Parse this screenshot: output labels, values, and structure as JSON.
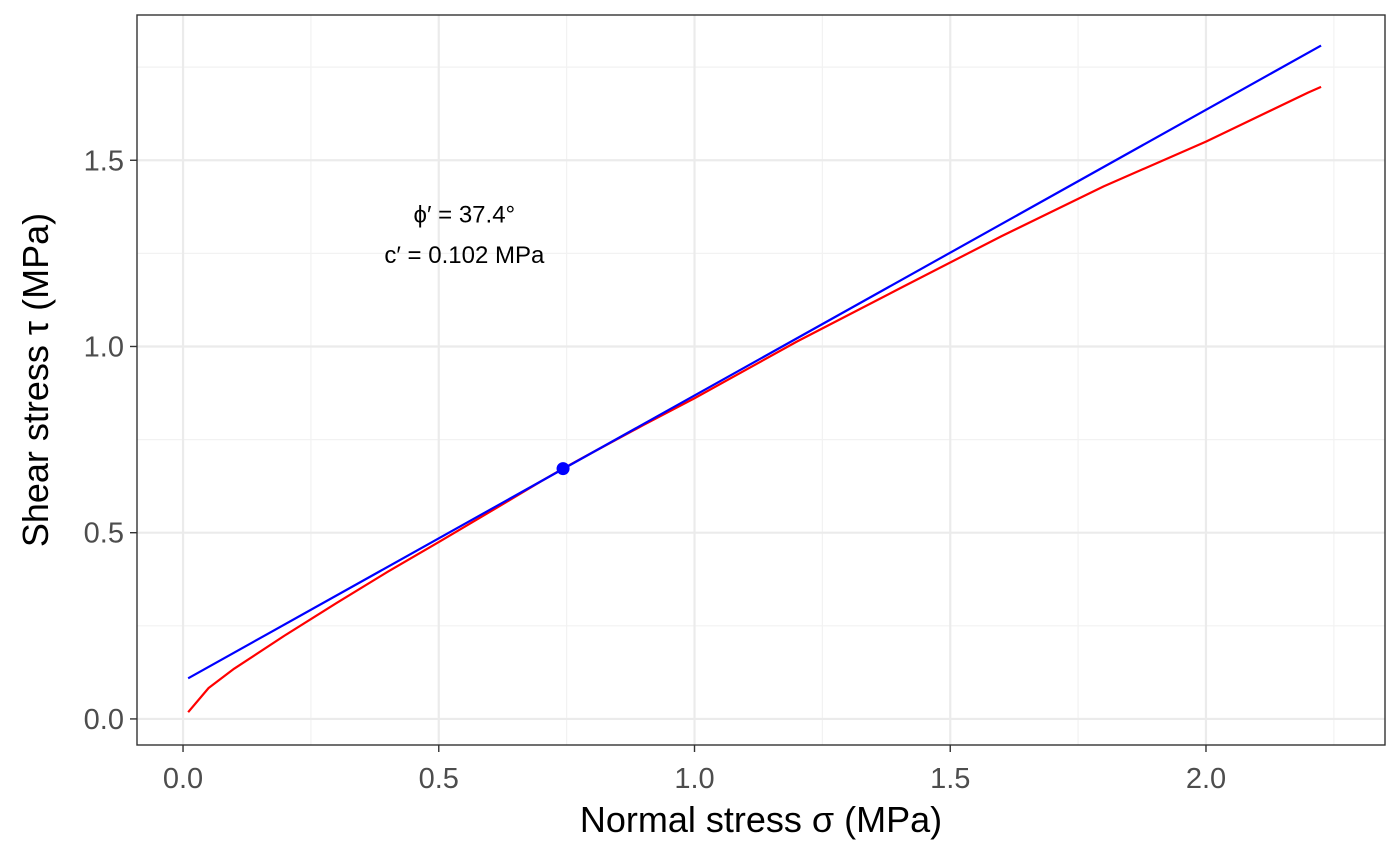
{
  "chart_data": {
    "type": "line",
    "xlabel": "Normal stress σ (MPa)",
    "ylabel": "Shear stress τ (MPa)",
    "xlim": [
      -0.09,
      2.35
    ],
    "ylim": [
      -0.07,
      1.89
    ],
    "x_ticks": [
      0.0,
      0.5,
      1.0,
      1.5,
      2.0
    ],
    "x_tick_labels": [
      "0.0",
      "0.5",
      "1.0",
      "1.5",
      "2.0"
    ],
    "y_ticks": [
      0.0,
      0.5,
      1.0,
      1.5
    ],
    "y_tick_labels": [
      "0.0",
      "0.5",
      "1.0",
      "1.5"
    ],
    "x_minor_ticks": [
      0.25,
      0.75,
      1.25,
      1.75,
      2.25
    ],
    "y_minor_ticks": [
      0.25,
      0.75,
      1.25,
      1.75
    ],
    "grid": true,
    "series": [
      {
        "color": "#ff0000",
        "x": [
          0.01,
          0.05,
          0.1,
          0.2,
          0.3,
          0.4,
          0.5,
          0.6,
          0.7,
          0.743,
          0.8,
          0.9,
          1.0,
          1.2,
          1.4,
          1.6,
          1.8,
          2.0,
          2.2,
          2.225
        ],
        "y": [
          0.018,
          0.083,
          0.135,
          0.225,
          0.311,
          0.395,
          0.475,
          0.556,
          0.638,
          0.672,
          0.715,
          0.789,
          0.861,
          1.013,
          1.155,
          1.296,
          1.43,
          1.55,
          1.682,
          1.697
        ]
      },
      {
        "color": "#0000ff",
        "x": [
          0.01,
          2.225
        ],
        "y": [
          0.109,
          1.808
        ]
      }
    ],
    "points": [
      {
        "x": 0.743,
        "y": 0.672,
        "color": "#0000ff"
      }
    ],
    "annotations": [
      {
        "text": "ϕ′ = 37.4°",
        "x": 0.55,
        "y": 1.355
      },
      {
        "text": "c′ = 0.102 MPa",
        "x": 0.55,
        "y": 1.245
      }
    ]
  }
}
